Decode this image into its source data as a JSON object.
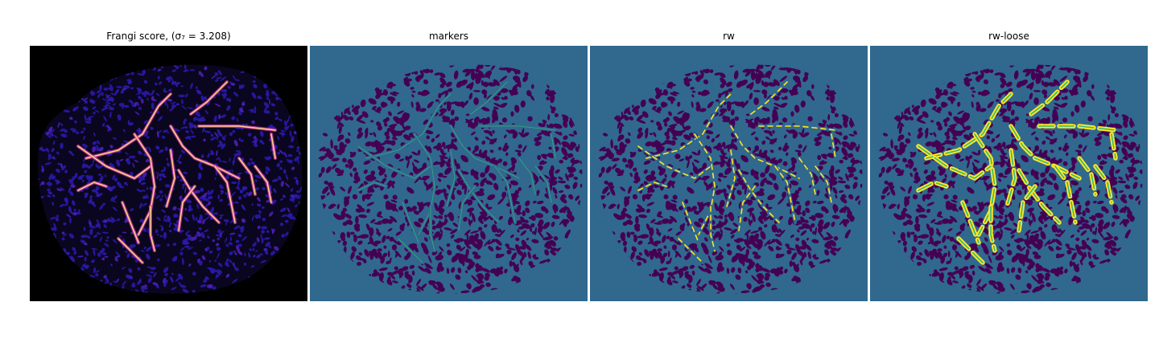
{
  "panels": [
    {
      "id": "frangi",
      "title": "Frangi score, (σ₇ = 3.208)",
      "colormap": "magma",
      "background": "#000000"
    },
    {
      "id": "markers",
      "title": "markers",
      "colormap": "viridis",
      "background": "#31688e"
    },
    {
      "id": "rw",
      "title": "rw",
      "colormap": "viridis",
      "background": "#31688e"
    },
    {
      "id": "rwloose",
      "title": "rw-loose",
      "colormap": "viridis",
      "background": "#31688e"
    }
  ],
  "colors": {
    "tissue_purple": "#440154",
    "teal": "#31688e",
    "vessel_yellow": "#fde725",
    "vessel_green": "#35b779",
    "frangi_blue": "#2a1aa8",
    "frangi_magenta": "#d63fa0",
    "frangi_peach": "#fcd38c"
  }
}
